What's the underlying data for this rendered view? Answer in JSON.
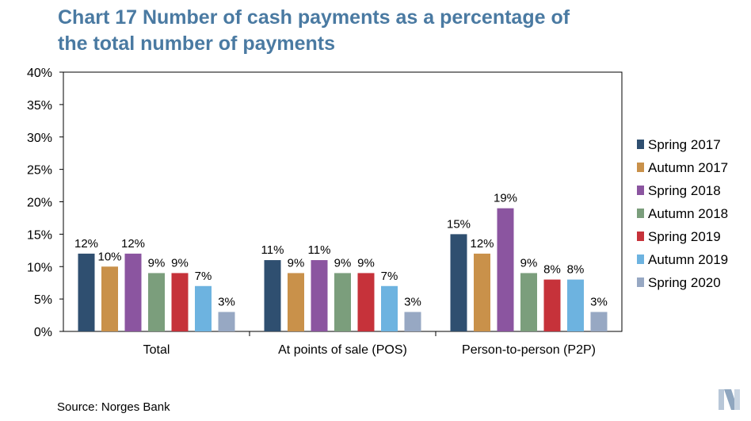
{
  "title_line1": "Chart 17 Number of cash payments as a percentage of",
  "title_line2": "the total number of payments",
  "source": "Source: Norges Bank",
  "chart_data": {
    "type": "bar",
    "title": "Chart 17 Number of cash payments as a percentage of the total number of payments",
    "categories": [
      "Total",
      "At points of sale (POS)",
      "Person-to-person (P2P)"
    ],
    "series": [
      {
        "name": "Spring 2017",
        "color": "#2f4f70",
        "values": [
          12,
          11,
          15
        ]
      },
      {
        "name": "Autumn 2017",
        "color": "#c9914a",
        "values": [
          10,
          9,
          12
        ]
      },
      {
        "name": "Spring 2018",
        "color": "#8b55a0",
        "values": [
          12,
          11,
          19
        ]
      },
      {
        "name": "Autumn 2018",
        "color": "#7b9e7c",
        "values": [
          9,
          9,
          9
        ]
      },
      {
        "name": "Spring 2019",
        "color": "#c6323a",
        "values": [
          9,
          9,
          8
        ]
      },
      {
        "name": "Autumn 2019",
        "color": "#6db3e0",
        "values": [
          7,
          7,
          8
        ]
      },
      {
        "name": "Spring 2020",
        "color": "#97a8c3",
        "values": [
          3,
          3,
          3
        ]
      }
    ],
    "ylim": [
      0,
      40
    ],
    "yticks": [
      "0%",
      "5%",
      "10%",
      "15%",
      "20%",
      "25%",
      "30%",
      "35%",
      "40%"
    ],
    "value_suffix": "%",
    "grid": false,
    "legend_position": "right"
  }
}
